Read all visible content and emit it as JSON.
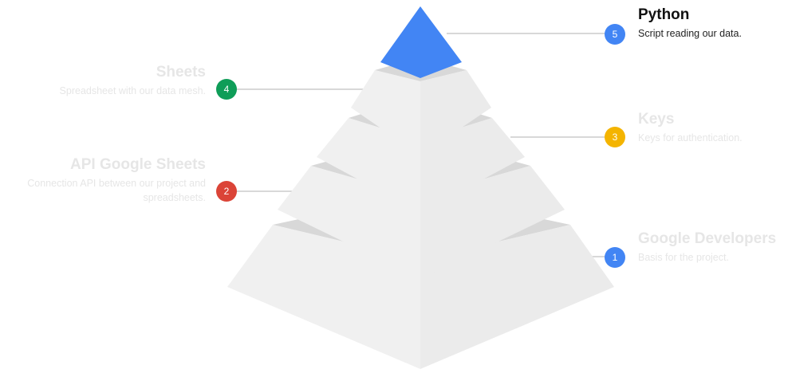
{
  "layers": [
    {
      "number": "1",
      "title": "Google Developers",
      "description": "Basis for the project.",
      "color": "#4285f4",
      "active": false
    },
    {
      "number": "2",
      "title": "API Google Sheets",
      "description": "Connection API between our project and spreadsheets.",
      "color": "#db4437",
      "active": false
    },
    {
      "number": "3",
      "title": "Keys",
      "description": "Keys for authentication.",
      "color": "#f4b400",
      "active": false
    },
    {
      "number": "4",
      "title": "Sheets",
      "description": "Spreadsheet with our data mesh.",
      "color": "#0f9d58",
      "active": false
    },
    {
      "number": "5",
      "title": "Python",
      "description": "Script reading our data.",
      "color": "#4285f4",
      "active": true
    }
  ],
  "colors": {
    "face": "#efefef",
    "ledge": "#d8d8d8",
    "leader": "#cccccc",
    "apex": "#4285f4"
  }
}
